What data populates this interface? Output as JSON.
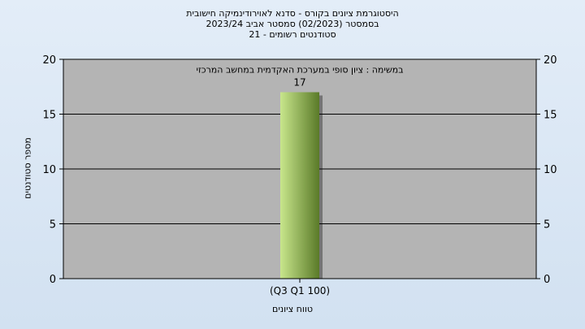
{
  "title_lines": [
    "היסטוגרמת ציונים בקורס - סדנא לאוירודינמיקה חישובית",
    "בסמסטר   (02/2023)   סמסטר אביב 2023/24",
    "סטודנטים רשומים - 21"
  ],
  "chart_data": {
    "type": "bar",
    "categories": [
      "(Q3 Q1 100)"
    ],
    "values": [
      17
    ],
    "data_labels": [
      "17"
    ],
    "annotation": "במשימה : ציון סופי במערכת האקדמית במחשב המרכזי",
    "xlabel": "טווח ציונים",
    "ylabel": "מספר סטודנטים",
    "ylim": [
      0,
      20
    ],
    "yticks": [
      0,
      5,
      10,
      15,
      20
    ],
    "grid": true,
    "plot_background": "#b4b4b4",
    "bar_color_light": "#c8e68c",
    "bar_color_dark": "#5a7a28"
  }
}
